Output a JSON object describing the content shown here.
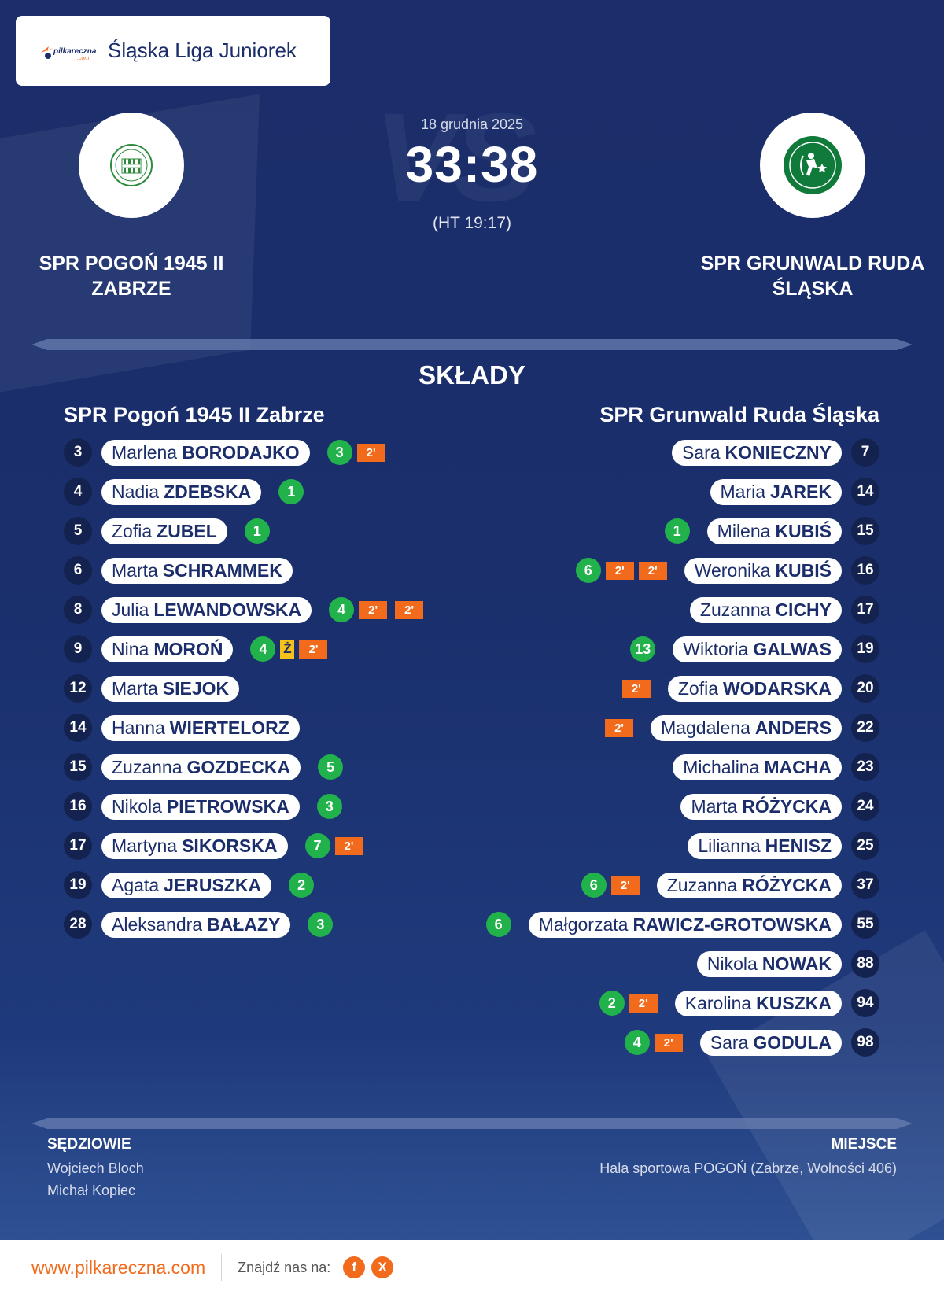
{
  "header": {
    "brand": "pilkareczna.com",
    "league": "Śląska Liga Juniorek"
  },
  "match": {
    "date": "18 grudnia 2025",
    "score": "33:38",
    "halftime": "(HT 19:17)",
    "vs": "VS"
  },
  "home_team": {
    "name": "SPR POGOŃ 1945 II ZABRZE"
  },
  "away_team": {
    "name": "SPR GRUNWALD RUDA ŚLĄSKA"
  },
  "lineups": {
    "title": "SKŁADY",
    "home": {
      "title": "SPR Pogoń 1945 II Zabrze",
      "players": [
        {
          "number": "3",
          "first": "Marlena",
          "last": "BORODAJKO",
          "goals": "3",
          "penalties": [
            "2'"
          ]
        },
        {
          "number": "4",
          "first": "Nadia",
          "last": "ZDEBSKA",
          "goals": "1",
          "penalties": []
        },
        {
          "number": "5",
          "first": "Zofia",
          "last": "ZUBEL",
          "goals": "1",
          "penalties": []
        },
        {
          "number": "6",
          "first": "Marta",
          "last": "SCHRAMMEK",
          "goals": "",
          "penalties": []
        },
        {
          "number": "8",
          "first": "Julia",
          "last": "LEWANDOWSKA",
          "goals": "4",
          "penalties": [
            "2'",
            "2'"
          ]
        },
        {
          "number": "9",
          "first": "Nina",
          "last": "MOROŃ",
          "goals": "4",
          "yellow": "Ż",
          "penalties": [
            "2'"
          ]
        },
        {
          "number": "12",
          "first": "Marta",
          "last": "SIEJOK",
          "goals": "",
          "penalties": []
        },
        {
          "number": "14",
          "first": "Hanna",
          "last": "WIERTELORZ",
          "goals": "",
          "penalties": []
        },
        {
          "number": "15",
          "first": "Zuzanna",
          "last": "GOZDECKA",
          "goals": "5",
          "penalties": []
        },
        {
          "number": "16",
          "first": "Nikola",
          "last": "PIETROWSKA",
          "goals": "3",
          "penalties": []
        },
        {
          "number": "17",
          "first": "Martyna",
          "last": "SIKORSKA",
          "goals": "7",
          "penalties": [
            "2'"
          ]
        },
        {
          "number": "19",
          "first": "Agata",
          "last": "JERUSZKA",
          "goals": "2",
          "penalties": []
        },
        {
          "number": "28",
          "first": "Aleksandra",
          "last": "BAŁAZY",
          "goals": "3",
          "penalties": []
        }
      ]
    },
    "away": {
      "title": "SPR Grunwald Ruda Śląska",
      "players": [
        {
          "number": "7",
          "first": "Sara",
          "last": "KONIECZNY",
          "goals": "",
          "penalties": []
        },
        {
          "number": "14",
          "first": "Maria",
          "last": "JAREK",
          "goals": "",
          "penalties": []
        },
        {
          "number": "15",
          "first": "Milena",
          "last": "KUBIŚ",
          "goals": "1",
          "penalties": []
        },
        {
          "number": "16",
          "first": "Weronika",
          "last": "KUBIŚ",
          "goals": "6",
          "penalties": [
            "2'",
            "2'"
          ]
        },
        {
          "number": "17",
          "first": "Zuzanna",
          "last": "CICHY",
          "goals": "",
          "penalties": []
        },
        {
          "number": "19",
          "first": "Wiktoria",
          "last": "GALWAS",
          "goals": "13",
          "penalties": []
        },
        {
          "number": "20",
          "first": "Zofia",
          "last": "WODARSKA",
          "goals": "",
          "penalties": [
            "2'"
          ]
        },
        {
          "number": "22",
          "first": "Magdalena",
          "last": "ANDERS",
          "goals": "",
          "penalties": [
            "2'"
          ]
        },
        {
          "number": "23",
          "first": "Michalina",
          "last": "MACHA",
          "goals": "",
          "penalties": []
        },
        {
          "number": "24",
          "first": "Marta",
          "last": "RÓŻYCKA",
          "goals": "",
          "penalties": []
        },
        {
          "number": "25",
          "first": "Lilianna",
          "last": "HENISZ",
          "goals": "",
          "penalties": []
        },
        {
          "number": "37",
          "first": "Zuzanna",
          "last": "RÓŻYCKA",
          "goals": "6",
          "penalties": [
            "2'"
          ]
        },
        {
          "number": "55",
          "first": "Małgorzata",
          "last": "RAWICZ-GROTOWSKA",
          "goals": "6",
          "penalties": []
        },
        {
          "number": "88",
          "first": "Nikola",
          "last": "NOWAK",
          "goals": "",
          "penalties": []
        },
        {
          "number": "94",
          "first": "Karolina",
          "last": "KUSZKA",
          "goals": "2",
          "penalties": [
            "2'"
          ]
        },
        {
          "number": "98",
          "first": "Sara",
          "last": "GODULA",
          "goals": "4",
          "penalties": [
            "2'"
          ]
        }
      ]
    }
  },
  "officials": {
    "title": "SĘDZIOWIE",
    "referees": [
      "Wojciech Bloch",
      "Michał Kopiec"
    ]
  },
  "venue": {
    "title": "MIEJSCE",
    "name": "Hala sportowa POGOŃ (Zabrze, Wolności 406)"
  },
  "footer": {
    "url": "www.pilkareczna.com",
    "social_label": "Znajdź nas na:",
    "facebook": "f",
    "x": "X"
  },
  "colors": {
    "background": "#1b2d6a",
    "goal": "#22b24c",
    "penalty": "#f26a1b",
    "yellow_card": "#f6c21a",
    "home_badge_green": "#2e8b3e",
    "away_badge_green": "#0f7a3a"
  },
  "icons": {
    "brand": "pilkareczna-logo",
    "home_crest": "pogon-zabrze-crest",
    "away_crest": "grunwald-ruda-slaska-crest",
    "facebook": "facebook-icon",
    "x": "x-icon"
  }
}
